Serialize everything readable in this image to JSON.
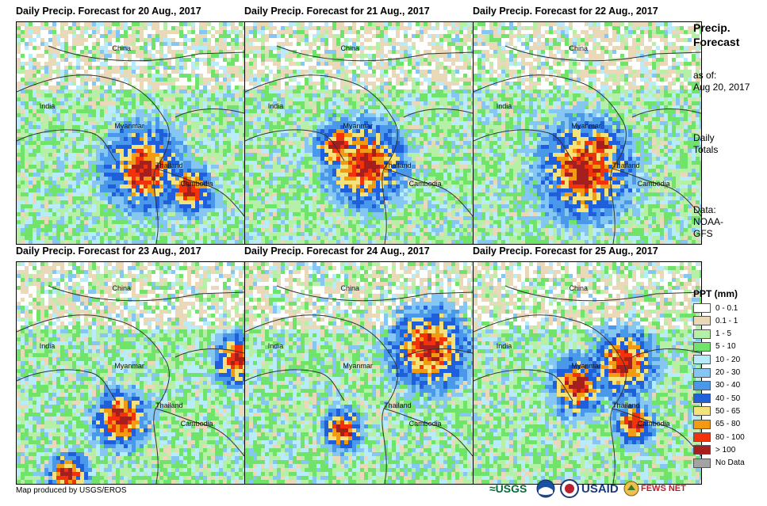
{
  "panels": [
    {
      "title": "Daily Precip. Forecast for 20 Aug., 2017"
    },
    {
      "title": "Daily Precip. Forecast for 21 Aug., 2017"
    },
    {
      "title": "Daily Precip. Forecast for 22 Aug., 2017"
    },
    {
      "title": "Daily Precip. Forecast for 23 Aug., 2017"
    },
    {
      "title": "Daily Precip. Forecast for 24 Aug., 2017"
    },
    {
      "title": "Daily Precip. Forecast for 25 Aug., 2017"
    }
  ],
  "places": {
    "china": "China",
    "india": "India",
    "myanmar": "Myanmar",
    "thailand": "Thailand",
    "cambodia": "Cambodia"
  },
  "sidebar": {
    "title_line1": "Precip.",
    "title_line2": "Forecast",
    "asof_line1": "as of:",
    "asof_line2": "Aug 20, 2017",
    "totals_line1": "Daily",
    "totals_line2": "Totals",
    "data_line1": "Data:",
    "data_line2": "NOAA-",
    "data_line3": "GFS"
  },
  "legend": {
    "title": "PPT (mm)",
    "items": [
      {
        "label": "0 - 0.1",
        "color": "#ffffff"
      },
      {
        "label": "0.1 - 1",
        "color": "#ead9b8"
      },
      {
        "label": "1 - 5",
        "color": "#b6f0a6"
      },
      {
        "label": "5 - 10",
        "color": "#6fe36a"
      },
      {
        "label": "10 - 20",
        "color": "#b8ecfa"
      },
      {
        "label": "20 - 30",
        "color": "#85c6f2"
      },
      {
        "label": "30 - 40",
        "color": "#4a98ea"
      },
      {
        "label": "40 - 50",
        "color": "#1f5fdc"
      },
      {
        "label": "50 - 65",
        "color": "#f6e27a"
      },
      {
        "label": "65 - 80",
        "color": "#f29a12"
      },
      {
        "label": "80 - 100",
        "color": "#f2320b"
      },
      {
        "label": "> 100",
        "color": "#a51f1f"
      },
      {
        "label": "No Data",
        "color": "#a3a3a3"
      }
    ]
  },
  "footer": {
    "credit": "Map produced by USGS/EROS"
  },
  "logos": {
    "usgs": "≈USGS",
    "usaid": "USAID",
    "fewsnet": "FEWS NET"
  }
}
